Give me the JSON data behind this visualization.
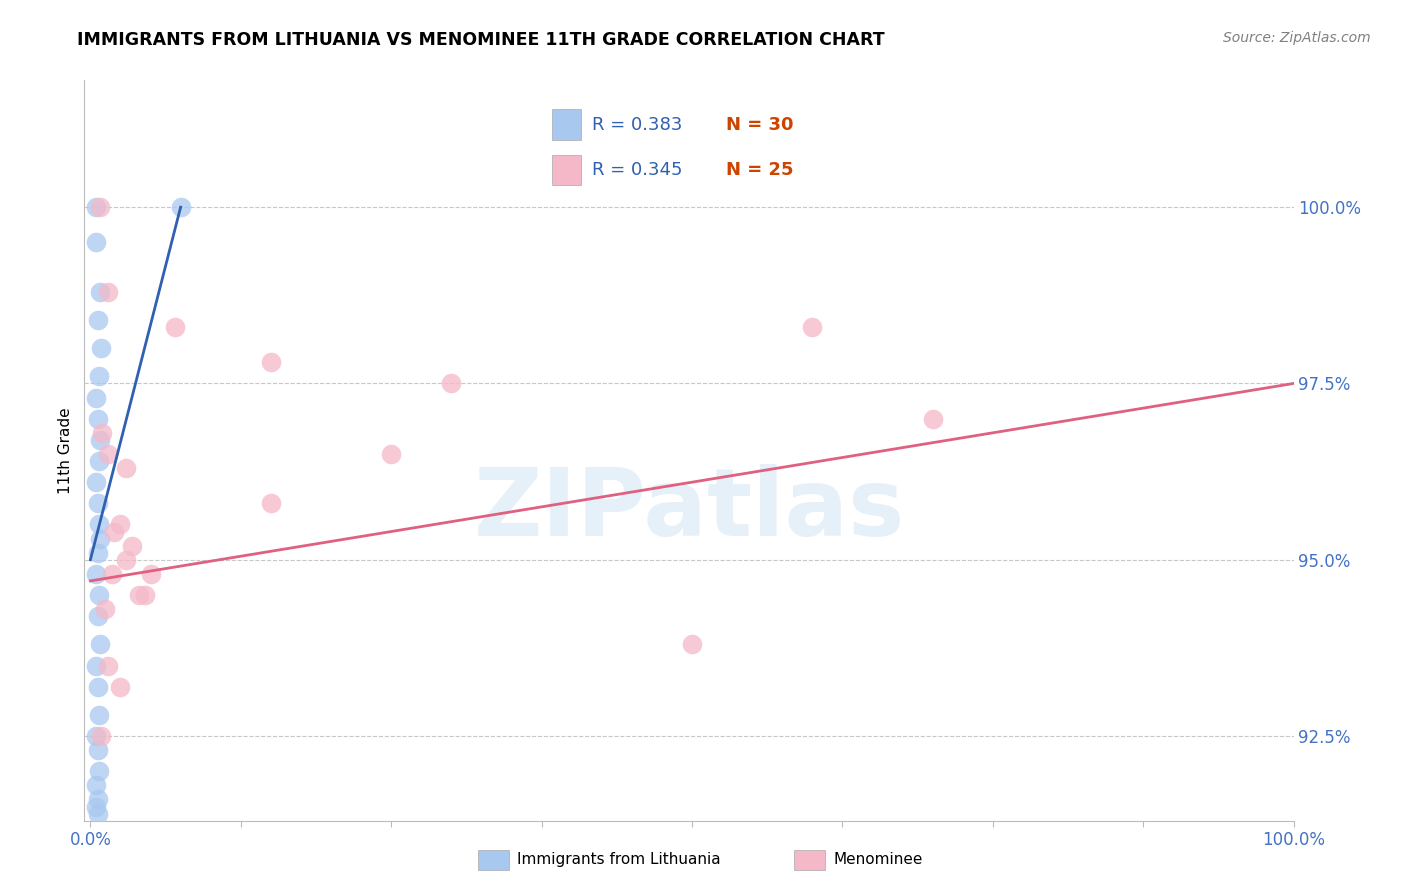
{
  "title": "IMMIGRANTS FROM LITHUANIA VS MENOMINEE 11TH GRADE CORRELATION CHART",
  "source": "Source: ZipAtlas.com",
  "ylabel": "11th Grade",
  "xlim": [
    -0.5,
    100.0
  ],
  "ylim": [
    91.3,
    101.8
  ],
  "yticks": [
    92.5,
    95.0,
    97.5,
    100.0
  ],
  "ytick_labels": [
    "92.5%",
    "95.0%",
    "97.5%",
    "100.0%"
  ],
  "xticks": [
    0.0,
    12.5,
    25.0,
    37.5,
    50.0,
    62.5,
    75.0,
    87.5,
    100.0
  ],
  "xtick_labels": [
    "0.0%",
    "",
    "",
    "",
    "",
    "",
    "",
    "",
    "100.0%"
  ],
  "legend_blue_r": "R = 0.383",
  "legend_blue_n": "N = 30",
  "legend_pink_r": "R = 0.345",
  "legend_pink_n": "N = 25",
  "blue_scatter_x": [
    0.5,
    0.5,
    0.8,
    0.6,
    0.9,
    0.7,
    0.5,
    0.6,
    0.8,
    0.7,
    0.5,
    0.6,
    0.7,
    0.8,
    0.6,
    0.5,
    0.7,
    0.6,
    0.8,
    0.5,
    0.6,
    0.7,
    0.5,
    0.6,
    0.7,
    0.5,
    0.6,
    0.5,
    0.6,
    7.5
  ],
  "blue_scatter_y": [
    100.0,
    99.5,
    98.8,
    98.4,
    98.0,
    97.6,
    97.3,
    97.0,
    96.7,
    96.4,
    96.1,
    95.8,
    95.5,
    95.3,
    95.1,
    94.8,
    94.5,
    94.2,
    93.8,
    93.5,
    93.2,
    92.8,
    92.5,
    92.3,
    92.0,
    91.8,
    91.6,
    91.5,
    91.4,
    100.0
  ],
  "pink_scatter_x": [
    0.8,
    1.5,
    7.0,
    15.0,
    30.0,
    1.0,
    1.5,
    3.0,
    15.0,
    2.0,
    60.0,
    70.0,
    3.5,
    5.0,
    2.5,
    1.8,
    4.0,
    4.5,
    3.0,
    25.0,
    50.0,
    1.2,
    1.5,
    2.5,
    0.9
  ],
  "pink_scatter_y": [
    100.0,
    98.8,
    98.3,
    97.8,
    97.5,
    96.8,
    96.5,
    96.3,
    95.8,
    95.4,
    98.3,
    97.0,
    95.2,
    94.8,
    95.5,
    94.8,
    94.5,
    94.5,
    95.0,
    96.5,
    93.8,
    94.3,
    93.5,
    93.2,
    92.5
  ],
  "blue_line_x": [
    0.0,
    7.5
  ],
  "blue_line_y": [
    95.0,
    100.0
  ],
  "pink_line_x": [
    0.0,
    100.0
  ],
  "pink_line_y": [
    94.7,
    97.5
  ],
  "blue_color": "#a8c8f0",
  "pink_color": "#f5b8c8",
  "blue_line_color": "#3060b0",
  "pink_line_color": "#e06080",
  "watermark_text": "ZIPatlas",
  "background_color": "#ffffff",
  "grid_color": "#c8c8c8",
  "tick_color": "#4472c4",
  "title_color": "#000000",
  "source_color": "#808080"
}
